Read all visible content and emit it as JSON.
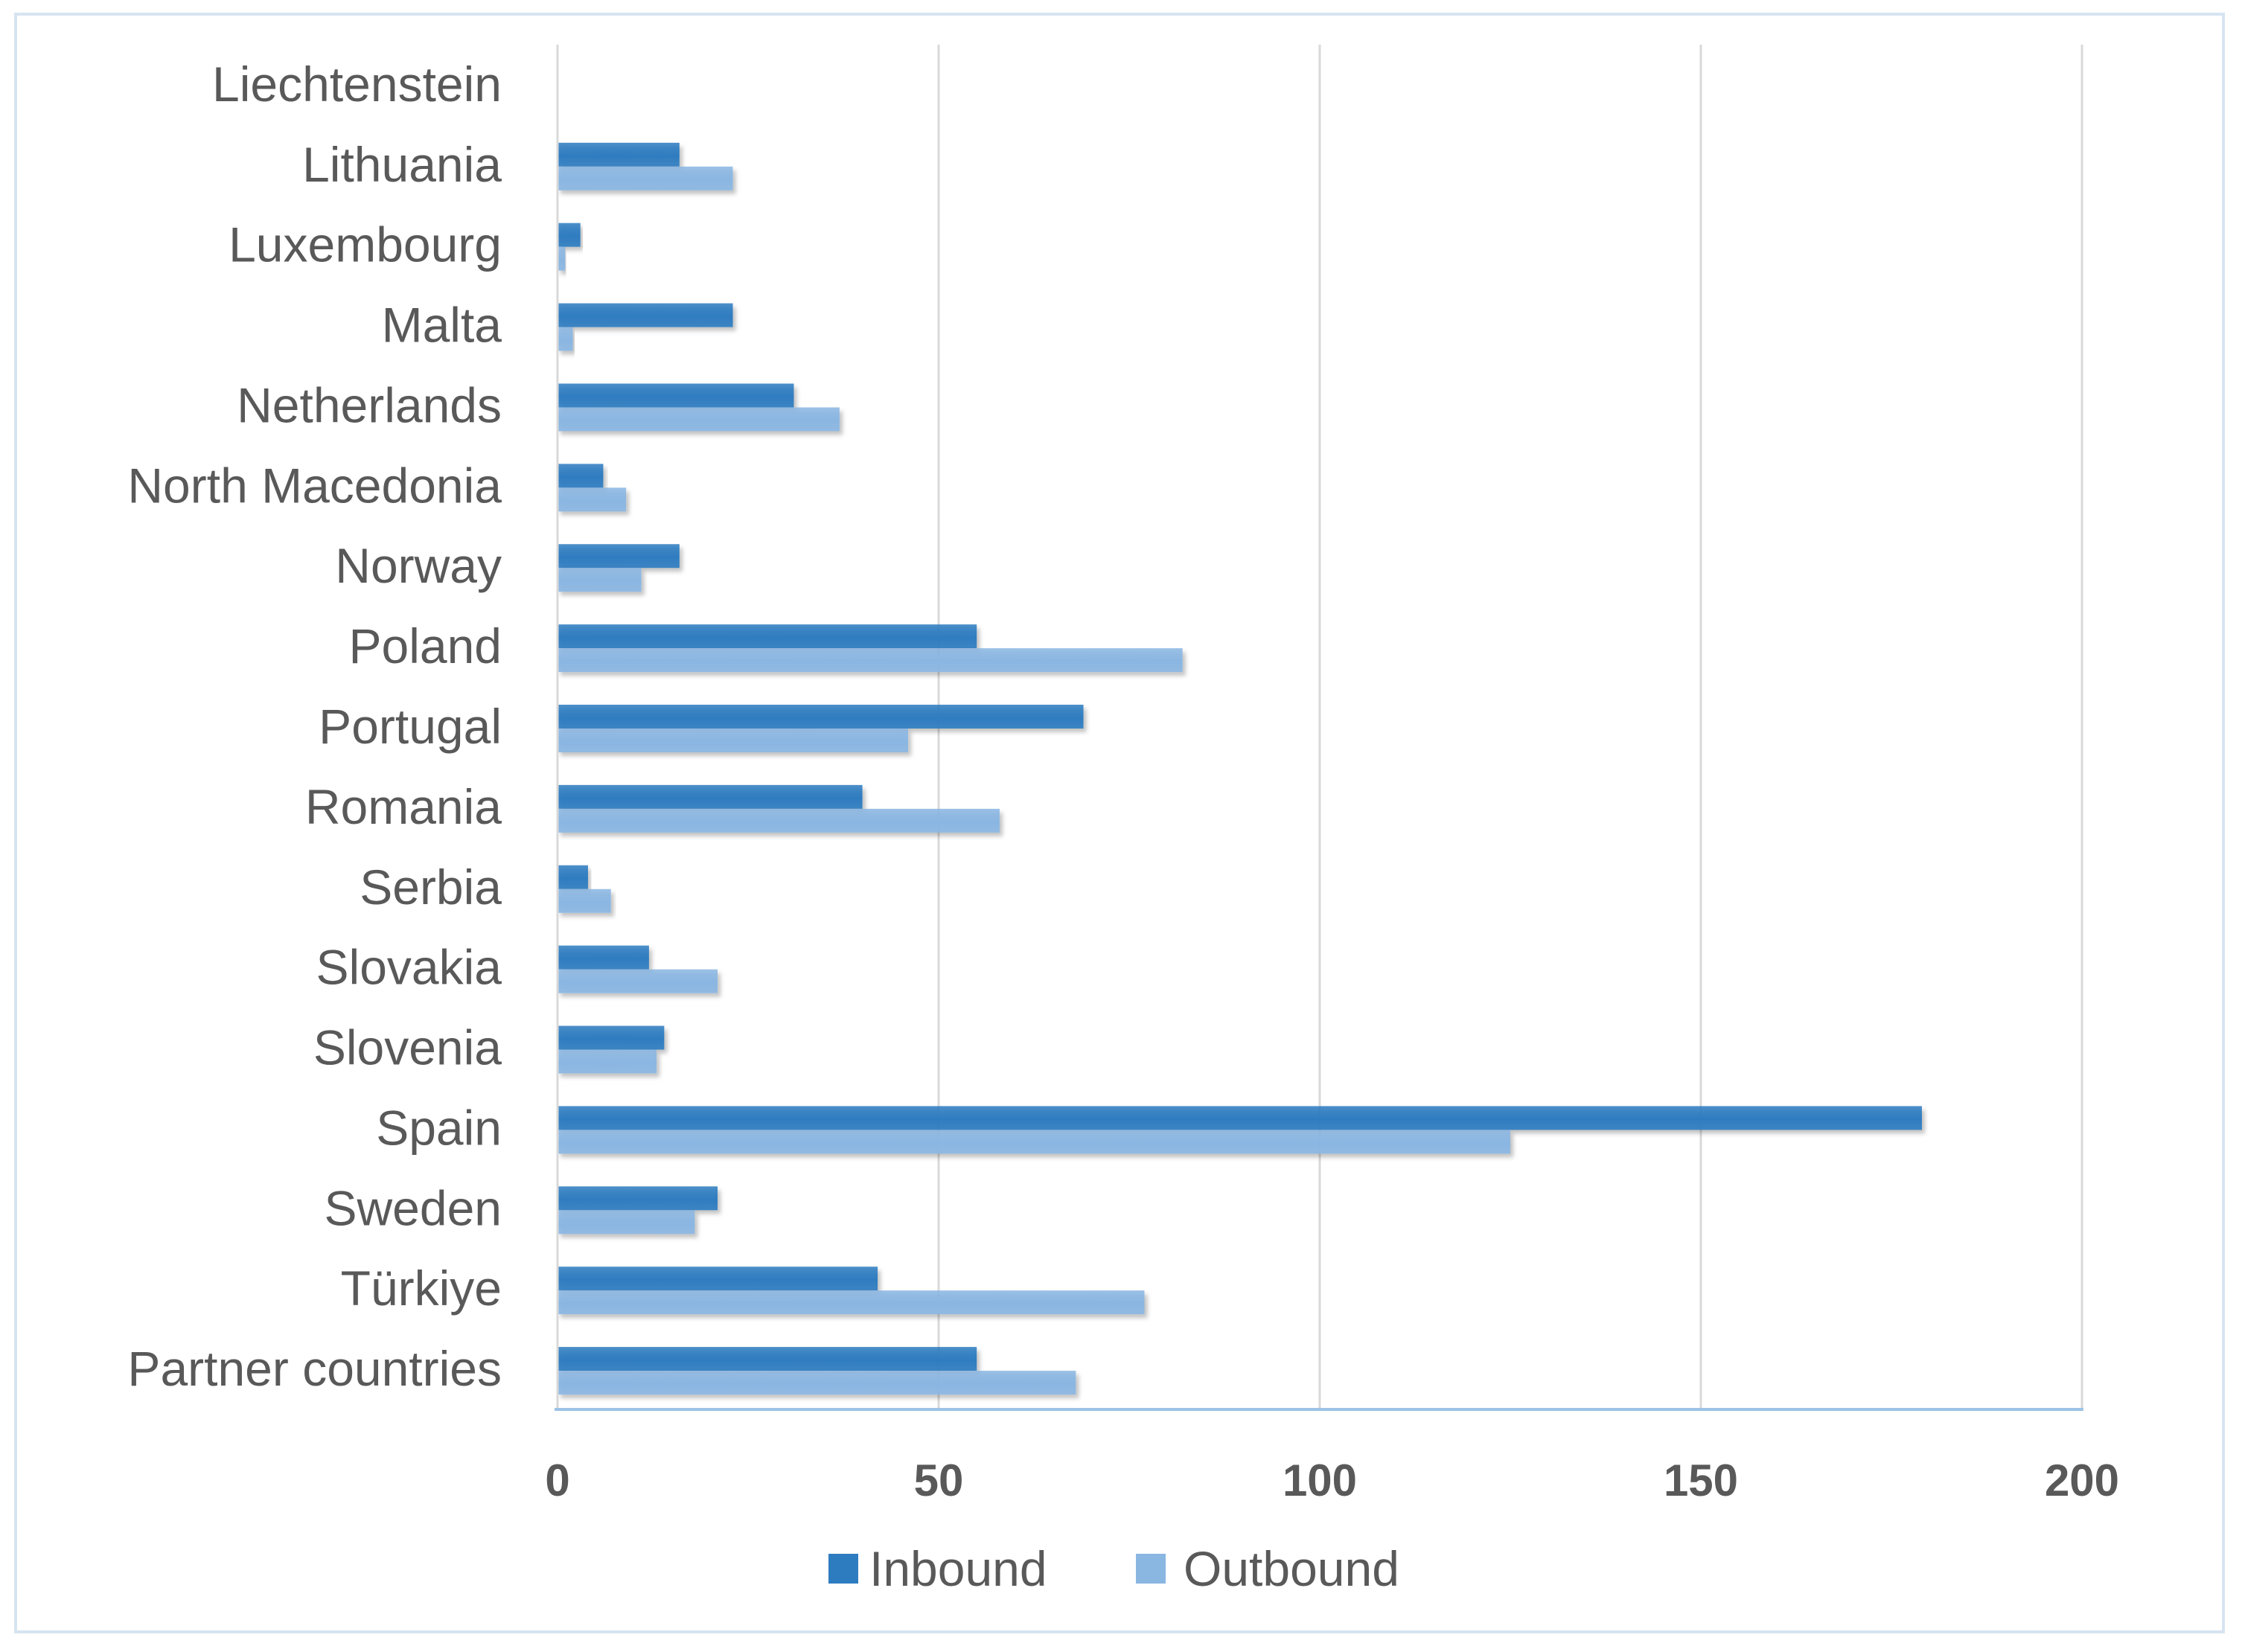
{
  "chart_data": {
    "type": "bar",
    "orientation": "horizontal",
    "categories": [
      "Liechtenstein",
      "Lithuania",
      "Luxembourg",
      "Malta",
      "Netherlands",
      "North Macedonia",
      "Norway",
      "Poland",
      "Portugal",
      "Romania",
      "Serbia",
      "Slovakia",
      "Slovenia",
      "Spain",
      "Sweden",
      "Türkiye",
      "Partner countries"
    ],
    "series": [
      {
        "name": "Inbound",
        "color": "#2e7cc0",
        "values": [
          0,
          16,
          3,
          23,
          31,
          6,
          16,
          55,
          69,
          40,
          4,
          12,
          14,
          179,
          21,
          42,
          55
        ]
      },
      {
        "name": "Outbound",
        "color": "#8ab6e2",
        "values": [
          0,
          23,
          1,
          2,
          37,
          9,
          11,
          82,
          46,
          58,
          7,
          21,
          13,
          125,
          18,
          77,
          68
        ]
      }
    ],
    "xlim": [
      0,
      200
    ],
    "xticks": [
      "0",
      "50",
      "100",
      "150",
      "200"
    ],
    "grid": "vertical",
    "legend_position": "bottom",
    "title": "",
    "xlabel": "",
    "ylabel": ""
  }
}
